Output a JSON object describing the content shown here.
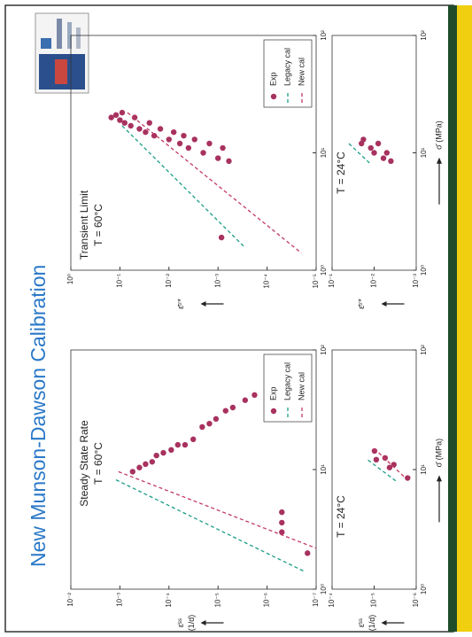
{
  "slide_title": "New Munson-Dawson Calibration",
  "chart_data": [
    {
      "type": "scatter",
      "title": "Steady State Rate",
      "subtitle": "T = 60°C",
      "log_x": true,
      "log_y": true,
      "legend": "lower right",
      "ylabel": "ε̇ˢˢ",
      "ylabel_unit": "(1/d)",
      "xlim": [
        1,
        100
      ],
      "xticks": [
        {
          "value": 1,
          "label": "10⁰"
        },
        {
          "value": 10,
          "label": "10¹"
        },
        {
          "value": 100,
          "label": "10²"
        }
      ],
      "ylim": [
        1e-07,
        0.01
      ],
      "yticks": [
        {
          "value": 0.01,
          "label": "10⁻²"
        },
        {
          "value": 0.001,
          "label": "10⁻³"
        },
        {
          "value": 0.0001,
          "label": "10⁻⁴"
        },
        {
          "value": 1e-05,
          "label": "10⁻⁵"
        },
        {
          "value": 1e-06,
          "label": "10⁻⁶"
        },
        {
          "value": 1e-07,
          "label": "10⁻⁷"
        }
      ],
      "series": [
        {
          "name": "Exp",
          "color": "#a8325f",
          "marker": "o",
          "x": [
            9.6,
            10.4,
            11.1,
            11.6,
            13.1,
            13.8,
            14.6,
            16.1,
            16.1,
            17.9,
            22.7,
            24.2,
            26.5,
            31,
            33,
            38,
            42,
            4.4,
            3.6,
            3.0,
            2.0
          ],
          "values": [
            0.00055,
            0.0004,
            0.0003,
            0.00022,
            0.00018,
            0.00013,
            9e-05,
            6.6e-05,
            4.7e-05,
            3.2e-05,
            2.1e-05,
            1.5e-05,
            1.1e-05,
            7e-06,
            5e-06,
            2.8e-06,
            1.8e-06,
            5e-07,
            5e-07,
            5e-07,
            1.5e-07
          ]
        },
        {
          "name": "Legacy cal",
          "color": "#1a9e86",
          "linestyle": "--",
          "x": [
            8.2,
            1.4
          ],
          "values": [
            0.0012,
            1.7e-07
          ]
        },
        {
          "name": "New cal",
          "color": "#c23a62",
          "linestyle": "--",
          "x": [
            9.6,
            2.2
          ],
          "values": [
            0.00107,
            1e-07
          ]
        }
      ]
    },
    {
      "type": "scatter",
      "title": "T = 24°C",
      "log_x": true,
      "log_y": true,
      "ylabel": "ε̇ˢˢ",
      "ylabel_unit": "(1/d)",
      "xlabel": "σ̄ (MPa)",
      "xlim": [
        1,
        100
      ],
      "xticks": [
        {
          "value": 1,
          "label": "10⁰"
        },
        {
          "value": 10,
          "label": "10¹"
        },
        {
          "value": 100,
          "label": "10²"
        }
      ],
      "ylim": [
        1e-06,
        0.0001
      ],
      "yticks": [
        {
          "value": 0.0001,
          "label": "10⁻⁴"
        },
        {
          "value": 1e-05,
          "label": "10⁻⁵"
        },
        {
          "value": 1e-06,
          "label": "10⁻⁶"
        }
      ],
      "series": [
        {
          "color": "#a8325f",
          "marker": "o",
          "x": [
            14.3,
            12.1,
            12.5,
            10.4,
            11,
            8.5
          ],
          "values": [
            9.8e-06,
            8.9e-06,
            5.5e-06,
            4.3e-06,
            3.4e-06,
            1.6e-06
          ]
        },
        {
          "color": "#1a9e86",
          "linestyle": "--",
          "x": [
            12,
            8
          ],
          "values": [
            1.4e-05,
            3e-06
          ]
        },
        {
          "color": "#c23a62",
          "linestyle": "--",
          "x": [
            15,
            8.5
          ],
          "values": [
            1e-05,
            1.8e-06
          ]
        }
      ]
    },
    {
      "type": "scatter",
      "title": "Transient Limit",
      "subtitle": "T = 60°C",
      "log_x": true,
      "log_y": true,
      "legend": "lower right",
      "ylabel": "ε̄ᵗʳ*",
      "xlim": [
        1,
        100
      ],
      "xticks": [
        {
          "value": 1,
          "label": "10⁰"
        },
        {
          "value": 10,
          "label": "10¹"
        },
        {
          "value": 100,
          "label": "10²"
        }
      ],
      "ylim": [
        1e-05,
        1
      ],
      "yticks": [
        {
          "value": 1,
          "label": "10⁰"
        },
        {
          "value": 0.1,
          "label": "10⁻¹"
        },
        {
          "value": 0.01,
          "label": "10⁻²"
        },
        {
          "value": 0.001,
          "label": "10⁻³"
        },
        {
          "value": 0.0001,
          "label": "10⁻⁴"
        },
        {
          "value": 1e-05,
          "label": "10⁻⁵"
        }
      ],
      "series": [
        {
          "name": "Exp",
          "color": "#a8325f",
          "marker": "o",
          "x": [
            20,
            21,
            19,
            22,
            18,
            17,
            20,
            16,
            15,
            18,
            14,
            16,
            13,
            15,
            12,
            14,
            11,
            13,
            10,
            12,
            9,
            11,
            8.5,
            1.9
          ],
          "values": [
            0.15,
            0.12,
            0.1,
            0.09,
            0.08,
            0.06,
            0.05,
            0.04,
            0.03,
            0.025,
            0.02,
            0.015,
            0.01,
            0.008,
            0.006,
            0.005,
            0.004,
            0.003,
            0.002,
            0.0015,
            0.001,
            0.0008,
            0.0006,
            0.00085
          ]
        },
        {
          "name": "Legacy cal",
          "color": "#1a9e86",
          "linestyle": "--",
          "x": [
            17,
            1.6
          ],
          "values": [
            0.09,
            0.0003
          ]
        },
        {
          "name": "New cal",
          "color": "#c23a62",
          "linestyle": "--",
          "x": [
            22,
            1.4
          ],
          "values": [
            0.07,
            2e-05
          ]
        }
      ]
    },
    {
      "type": "scatter",
      "title": "T = 24°C",
      "log_x": true,
      "log_y": true,
      "ylabel": "ε̄ᵗʳ*",
      "xlabel": "σ̄ (MPa)",
      "xlim": [
        1,
        100
      ],
      "xticks": [
        {
          "value": 1,
          "label": "10⁰"
        },
        {
          "value": 10,
          "label": "10¹"
        },
        {
          "value": 100,
          "label": "10²"
        }
      ],
      "ylim": [
        0.001,
        0.1
      ],
      "yticks": [
        {
          "value": 0.1,
          "label": "10⁻¹"
        },
        {
          "value": 0.01,
          "label": "10⁻²"
        },
        {
          "value": 0.001,
          "label": "10⁻³"
        }
      ],
      "series": [
        {
          "color": "#a8325f",
          "marker": "o",
          "x": [
            12,
            13,
            11,
            10,
            12,
            9,
            10,
            8.5
          ],
          "values": [
            0.02,
            0.018,
            0.012,
            0.01,
            0.008,
            0.006,
            0.005,
            0.004
          ]
        },
        {
          "color": "#1a9e86",
          "linestyle": "--",
          "x": [
            12,
            8
          ],
          "values": [
            0.04,
            0.012
          ]
        }
      ]
    }
  ]
}
